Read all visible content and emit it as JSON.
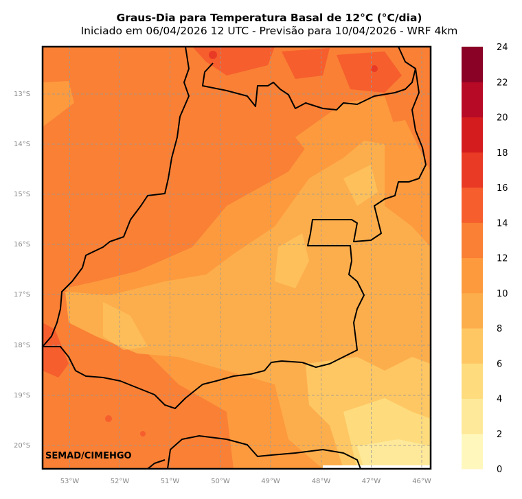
{
  "title": "Graus-Dia para Temperatura Basal de 12°C (°C/dia)",
  "subtitle": "Iniciado em 06/04/2026 12 UTC - Previsão para 10/04/2026 - WRF 4km",
  "credit": "SEMAD/CIMEHGO",
  "lon_ticks": [
    "53°W",
    "52°W",
    "51°W",
    "50°W",
    "49°W",
    "48°W",
    "47°W",
    "46°W"
  ],
  "lat_ticks": [
    "13°S",
    "14°S",
    "15°S",
    "16°S",
    "17°S",
    "18°S",
    "19°S",
    "20°S"
  ],
  "colorbar": {
    "labels": [
      "0",
      "2",
      "4",
      "6",
      "8",
      "10",
      "12",
      "14",
      "16",
      "18",
      "20",
      "22",
      "24"
    ],
    "colors": [
      "#fff7bc",
      "#fee99a",
      "#fedc7e",
      "#fec763",
      "#fdae4c",
      "#fd9a3e",
      "#f98035",
      "#f65e2d",
      "#e93a25",
      "#d41c1e",
      "#b70a26",
      "#8a0225"
    ]
  },
  "legend_colors": {
    "boundary": "#000000",
    "grid": "#999999"
  }
}
